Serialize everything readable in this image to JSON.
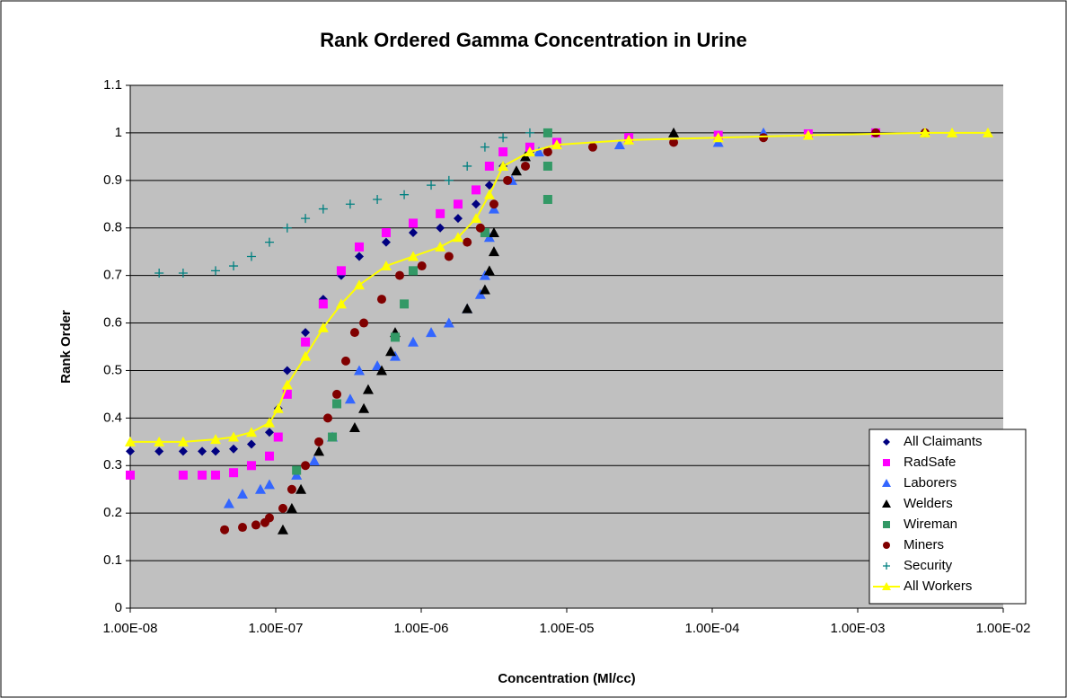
{
  "chart_data": {
    "type": "scatter",
    "title": "Rank Ordered Gamma Concentration in Urine",
    "x_label": "Concentration (Ml/cc)",
    "y_label": "Rank Order",
    "xscale": "log",
    "xlim": [
      1e-08,
      0.01
    ],
    "xticks": [
      {
        "value": 1e-08,
        "label": "1.00E-08"
      },
      {
        "value": 1e-07,
        "label": "1.00E-07"
      },
      {
        "value": 1e-06,
        "label": "1.00E-06"
      },
      {
        "value": 1e-05,
        "label": "1.00E-05"
      },
      {
        "value": 0.0001,
        "label": "1.00E-04"
      },
      {
        "value": 0.001,
        "label": "1.00E-03"
      },
      {
        "value": 0.01,
        "label": "1.00E-02"
      }
    ],
    "ylim": [
      0,
      1.1
    ],
    "yticks": [
      0,
      0.1,
      0.2,
      0.3,
      0.4,
      0.5,
      0.6,
      0.7,
      0.8,
      0.9,
      1,
      1.1
    ],
    "grid": true,
    "legend": "lower right",
    "series": [
      {
        "name": "All Claimants",
        "color": "#000080",
        "marker": "diamond",
        "x": [
          1e-08,
          1.58e-08,
          2.31e-08,
          3.12e-08,
          3.86e-08,
          5.13e-08,
          6.81e-08,
          9.05e-08,
          1.04e-07,
          1.2e-07,
          1.6e-07,
          2.12e-07,
          2.82e-07,
          3.75e-07,
          5.74e-07,
          8.8e-07,
          1.35e-06,
          1.79e-06,
          2.38e-06,
          2.94e-06,
          3.65e-06,
          5.58e-06,
          8.55e-06,
          2.67e-05,
          0.00011,
          0.000457,
          0.00133
        ],
        "values": [
          0.33,
          0.33,
          0.33,
          0.33,
          0.33,
          0.335,
          0.345,
          0.37,
          0.42,
          0.5,
          0.58,
          0.65,
          0.7,
          0.74,
          0.77,
          0.79,
          0.8,
          0.82,
          0.85,
          0.89,
          0.93,
          0.96,
          0.975,
          0.985,
          0.99,
          0.995,
          1
        ]
      },
      {
        "name": "RadSafe",
        "color": "#ff00ff",
        "marker": "square",
        "x": [
          1e-08,
          2.31e-08,
          3.12e-08,
          3.86e-08,
          5.13e-08,
          6.81e-08,
          9.05e-08,
          1.04e-07,
          1.2e-07,
          1.6e-07,
          2.12e-07,
          2.82e-07,
          3.75e-07,
          5.74e-07,
          8.8e-07,
          1.35e-06,
          1.79e-06,
          2.38e-06,
          2.94e-06,
          3.65e-06,
          5.58e-06,
          8.55e-06,
          2.67e-05,
          0.00011,
          0.000457,
          0.00133
        ],
        "values": [
          0.28,
          0.28,
          0.28,
          0.28,
          0.285,
          0.3,
          0.32,
          0.36,
          0.45,
          0.56,
          0.64,
          0.71,
          0.76,
          0.79,
          0.81,
          0.83,
          0.85,
          0.88,
          0.93,
          0.96,
          0.97,
          0.98,
          0.99,
          0.995,
          0.998,
          1
        ]
      },
      {
        "name": "Laborers",
        "color": "#3366ff",
        "marker": "triangle",
        "x": [
          4.77e-08,
          5.91e-08,
          7.85e-08,
          9.05e-08,
          1.39e-07,
          1.84e-07,
          2.45e-07,
          3.25e-07,
          3.75e-07,
          4.99e-07,
          6.62e-07,
          8.8e-07,
          1.17e-06,
          1.55e-06,
          2.07e-06,
          2.55e-06,
          2.74e-06,
          2.94e-06,
          3.16e-06,
          4.2e-06,
          6.44e-06,
          2.31e-05,
          0.00011,
          0.000225
        ],
        "values": [
          0.22,
          0.24,
          0.25,
          0.26,
          0.28,
          0.31,
          0.36,
          0.44,
          0.5,
          0.51,
          0.53,
          0.56,
          0.58,
          0.6,
          0.63,
          0.66,
          0.7,
          0.78,
          0.84,
          0.9,
          0.96,
          0.975,
          0.98,
          1
        ]
      },
      {
        "name": "Welders",
        "color": "#000000",
        "marker": "triangle",
        "x": [
          1.12e-07,
          1.29e-07,
          1.49e-07,
          1.98e-07,
          3.49e-07,
          4.03e-07,
          4.32e-07,
          5.35e-07,
          6.17e-07,
          6.62e-07,
          2.07e-06,
          2.74e-06,
          2.94e-06,
          3.16e-06,
          3.16e-06,
          4.51e-06,
          5.2e-06,
          5.43e-05
        ],
        "values": [
          0.165,
          0.21,
          0.25,
          0.33,
          0.38,
          0.42,
          0.46,
          0.5,
          0.54,
          0.58,
          0.63,
          0.67,
          0.71,
          0.75,
          0.79,
          0.92,
          0.95,
          1
        ]
      },
      {
        "name": "Wireman",
        "color": "#339966",
        "marker": "square",
        "x": [
          1.39e-07,
          2.45e-07,
          2.63e-07,
          6.62e-07,
          7.64e-07,
          8.8e-07,
          2.74e-06,
          7.41e-06,
          7.41e-06,
          7.41e-06
        ],
        "values": [
          0.29,
          0.36,
          0.43,
          0.57,
          0.64,
          0.71,
          0.79,
          0.86,
          0.93,
          1
        ]
      },
      {
        "name": "Miners",
        "color": "#800000",
        "marker": "circle",
        "x": [
          4.45e-08,
          5.91e-08,
          7.31e-08,
          8.43e-08,
          9.05e-08,
          1.12e-07,
          1.29e-07,
          1.6e-07,
          1.98e-07,
          2.28e-07,
          2.63e-07,
          3.03e-07,
          3.49e-07,
          4.03e-07,
          5.35e-07,
          7.11e-07,
          1.01e-06,
          1.55e-06,
          2.07e-06,
          2.55e-06,
          3.16e-06,
          3.92e-06,
          5.2e-06,
          7.41e-06,
          1.51e-05,
          5.43e-05,
          0.000225,
          0.00133,
          0.0029
        ],
        "values": [
          0.165,
          0.17,
          0.175,
          0.18,
          0.19,
          0.21,
          0.25,
          0.3,
          0.35,
          0.4,
          0.45,
          0.52,
          0.58,
          0.6,
          0.65,
          0.7,
          0.72,
          0.74,
          0.77,
          0.8,
          0.85,
          0.9,
          0.93,
          0.96,
          0.97,
          0.98,
          0.99,
          1,
          1
        ]
      },
      {
        "name": "Security",
        "color": "#008080",
        "marker": "plus",
        "x": [
          1.58e-08,
          2.31e-08,
          3.86e-08,
          5.13e-08,
          6.81e-08,
          9.05e-08,
          1.2e-07,
          1.6e-07,
          2.12e-07,
          3.25e-07,
          4.99e-07,
          7.64e-07,
          1.17e-06,
          1.55e-06,
          2.07e-06,
          2.74e-06,
          3.65e-06,
          5.58e-06
        ],
        "values": [
          0.705,
          0.705,
          0.71,
          0.72,
          0.74,
          0.77,
          0.8,
          0.82,
          0.84,
          0.85,
          0.86,
          0.87,
          0.89,
          0.9,
          0.93,
          0.97,
          0.99,
          1
        ]
      },
      {
        "name": "All Workers",
        "color": "#ffff00",
        "marker": "triangle",
        "line": true,
        "x": [
          1e-08,
          1.58e-08,
          2.31e-08,
          3.86e-08,
          5.13e-08,
          6.81e-08,
          9.05e-08,
          1.04e-07,
          1.2e-07,
          1.6e-07,
          2.12e-07,
          2.82e-07,
          3.75e-07,
          5.74e-07,
          8.8e-07,
          1.35e-06,
          1.79e-06,
          2.38e-06,
          2.94e-06,
          3.65e-06,
          5.58e-06,
          8.55e-06,
          2.67e-05,
          0.00011,
          0.000457,
          0.0029,
          0.00445,
          0.00785
        ],
        "values": [
          0.35,
          0.35,
          0.35,
          0.355,
          0.36,
          0.37,
          0.39,
          0.42,
          0.47,
          0.53,
          0.59,
          0.64,
          0.68,
          0.72,
          0.74,
          0.76,
          0.78,
          0.82,
          0.87,
          0.93,
          0.96,
          0.975,
          0.985,
          0.99,
          0.995,
          1,
          1,
          1
        ]
      }
    ]
  }
}
